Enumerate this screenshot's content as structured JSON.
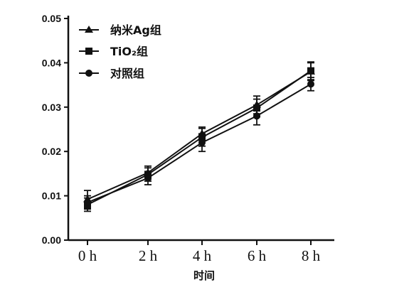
{
  "chart_data": {
    "type": "line",
    "categories": [
      "0 h",
      "2 h",
      "4 h",
      "6 h",
      "8 h"
    ],
    "xlabel": "时间",
    "ylabel": "",
    "ylim": [
      0.0,
      0.05
    ],
    "yticks": [
      "0.00",
      "0.01",
      "0.02",
      "0.03",
      "0.04",
      "0.05"
    ],
    "grid": false,
    "legend_position": "top-left",
    "series": [
      {
        "name": "纳米Ag组",
        "marker": "triangle",
        "values": [
          0.0092,
          0.0152,
          0.024,
          0.0305,
          0.038
        ],
        "errors": [
          0.002,
          0.0015,
          0.0015,
          0.002,
          0.002
        ]
      },
      {
        "name": "TiO₂组",
        "marker": "square",
        "values": [
          0.008,
          0.0148,
          0.0232,
          0.0298,
          0.0382
        ],
        "errors": [
          0.0015,
          0.0015,
          0.002,
          0.002,
          0.002
        ]
      },
      {
        "name": "对照组",
        "marker": "circle",
        "values": [
          0.0085,
          0.014,
          0.022,
          0.028,
          0.0352
        ],
        "errors": [
          0.0015,
          0.0015,
          0.002,
          0.002,
          0.0015
        ]
      }
    ],
    "colors": {
      "line": "#111111",
      "marker": "#111111"
    }
  }
}
